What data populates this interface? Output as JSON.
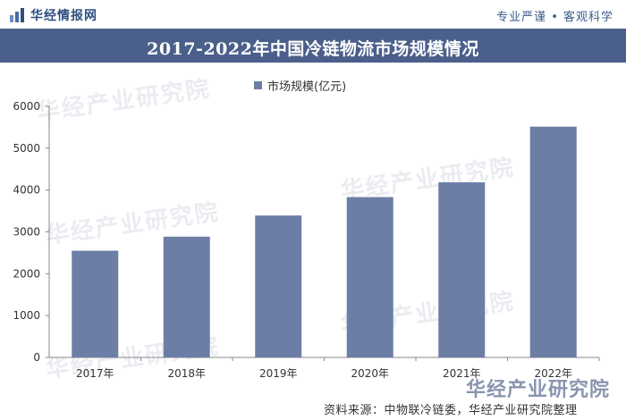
{
  "header": {
    "logo_text": "华经情报网",
    "slogan": "专业严谨 • 客观科学",
    "brand_color": "#2f4f7f"
  },
  "chart_data": {
    "type": "bar",
    "title": "2017-2022年中国冷链物流市场规模情况",
    "categories": [
      "2017年",
      "2018年",
      "2019年",
      "2020年",
      "2021年",
      "2022年"
    ],
    "series": [
      {
        "name": "市场规模(亿元)",
        "values": [
          2550,
          2886,
          3391,
          3832,
          4184,
          5515
        ]
      }
    ],
    "ylim": [
      0,
      6000
    ],
    "yticks": [
      0,
      1000,
      2000,
      3000,
      4000,
      5000,
      6000
    ],
    "xlabel": "",
    "ylabel": "",
    "grid": false,
    "legend": "top-center",
    "colors": {
      "bar": "#6c7ea6",
      "title_bg": "#4a5f8a",
      "axis": "#888888"
    }
  },
  "watermark": {
    "text": "华经产业研究院"
  },
  "footer": {
    "source": "资料来源：中物联冷链委，华经产业研究院整理",
    "brand": "华经产业研究院"
  }
}
